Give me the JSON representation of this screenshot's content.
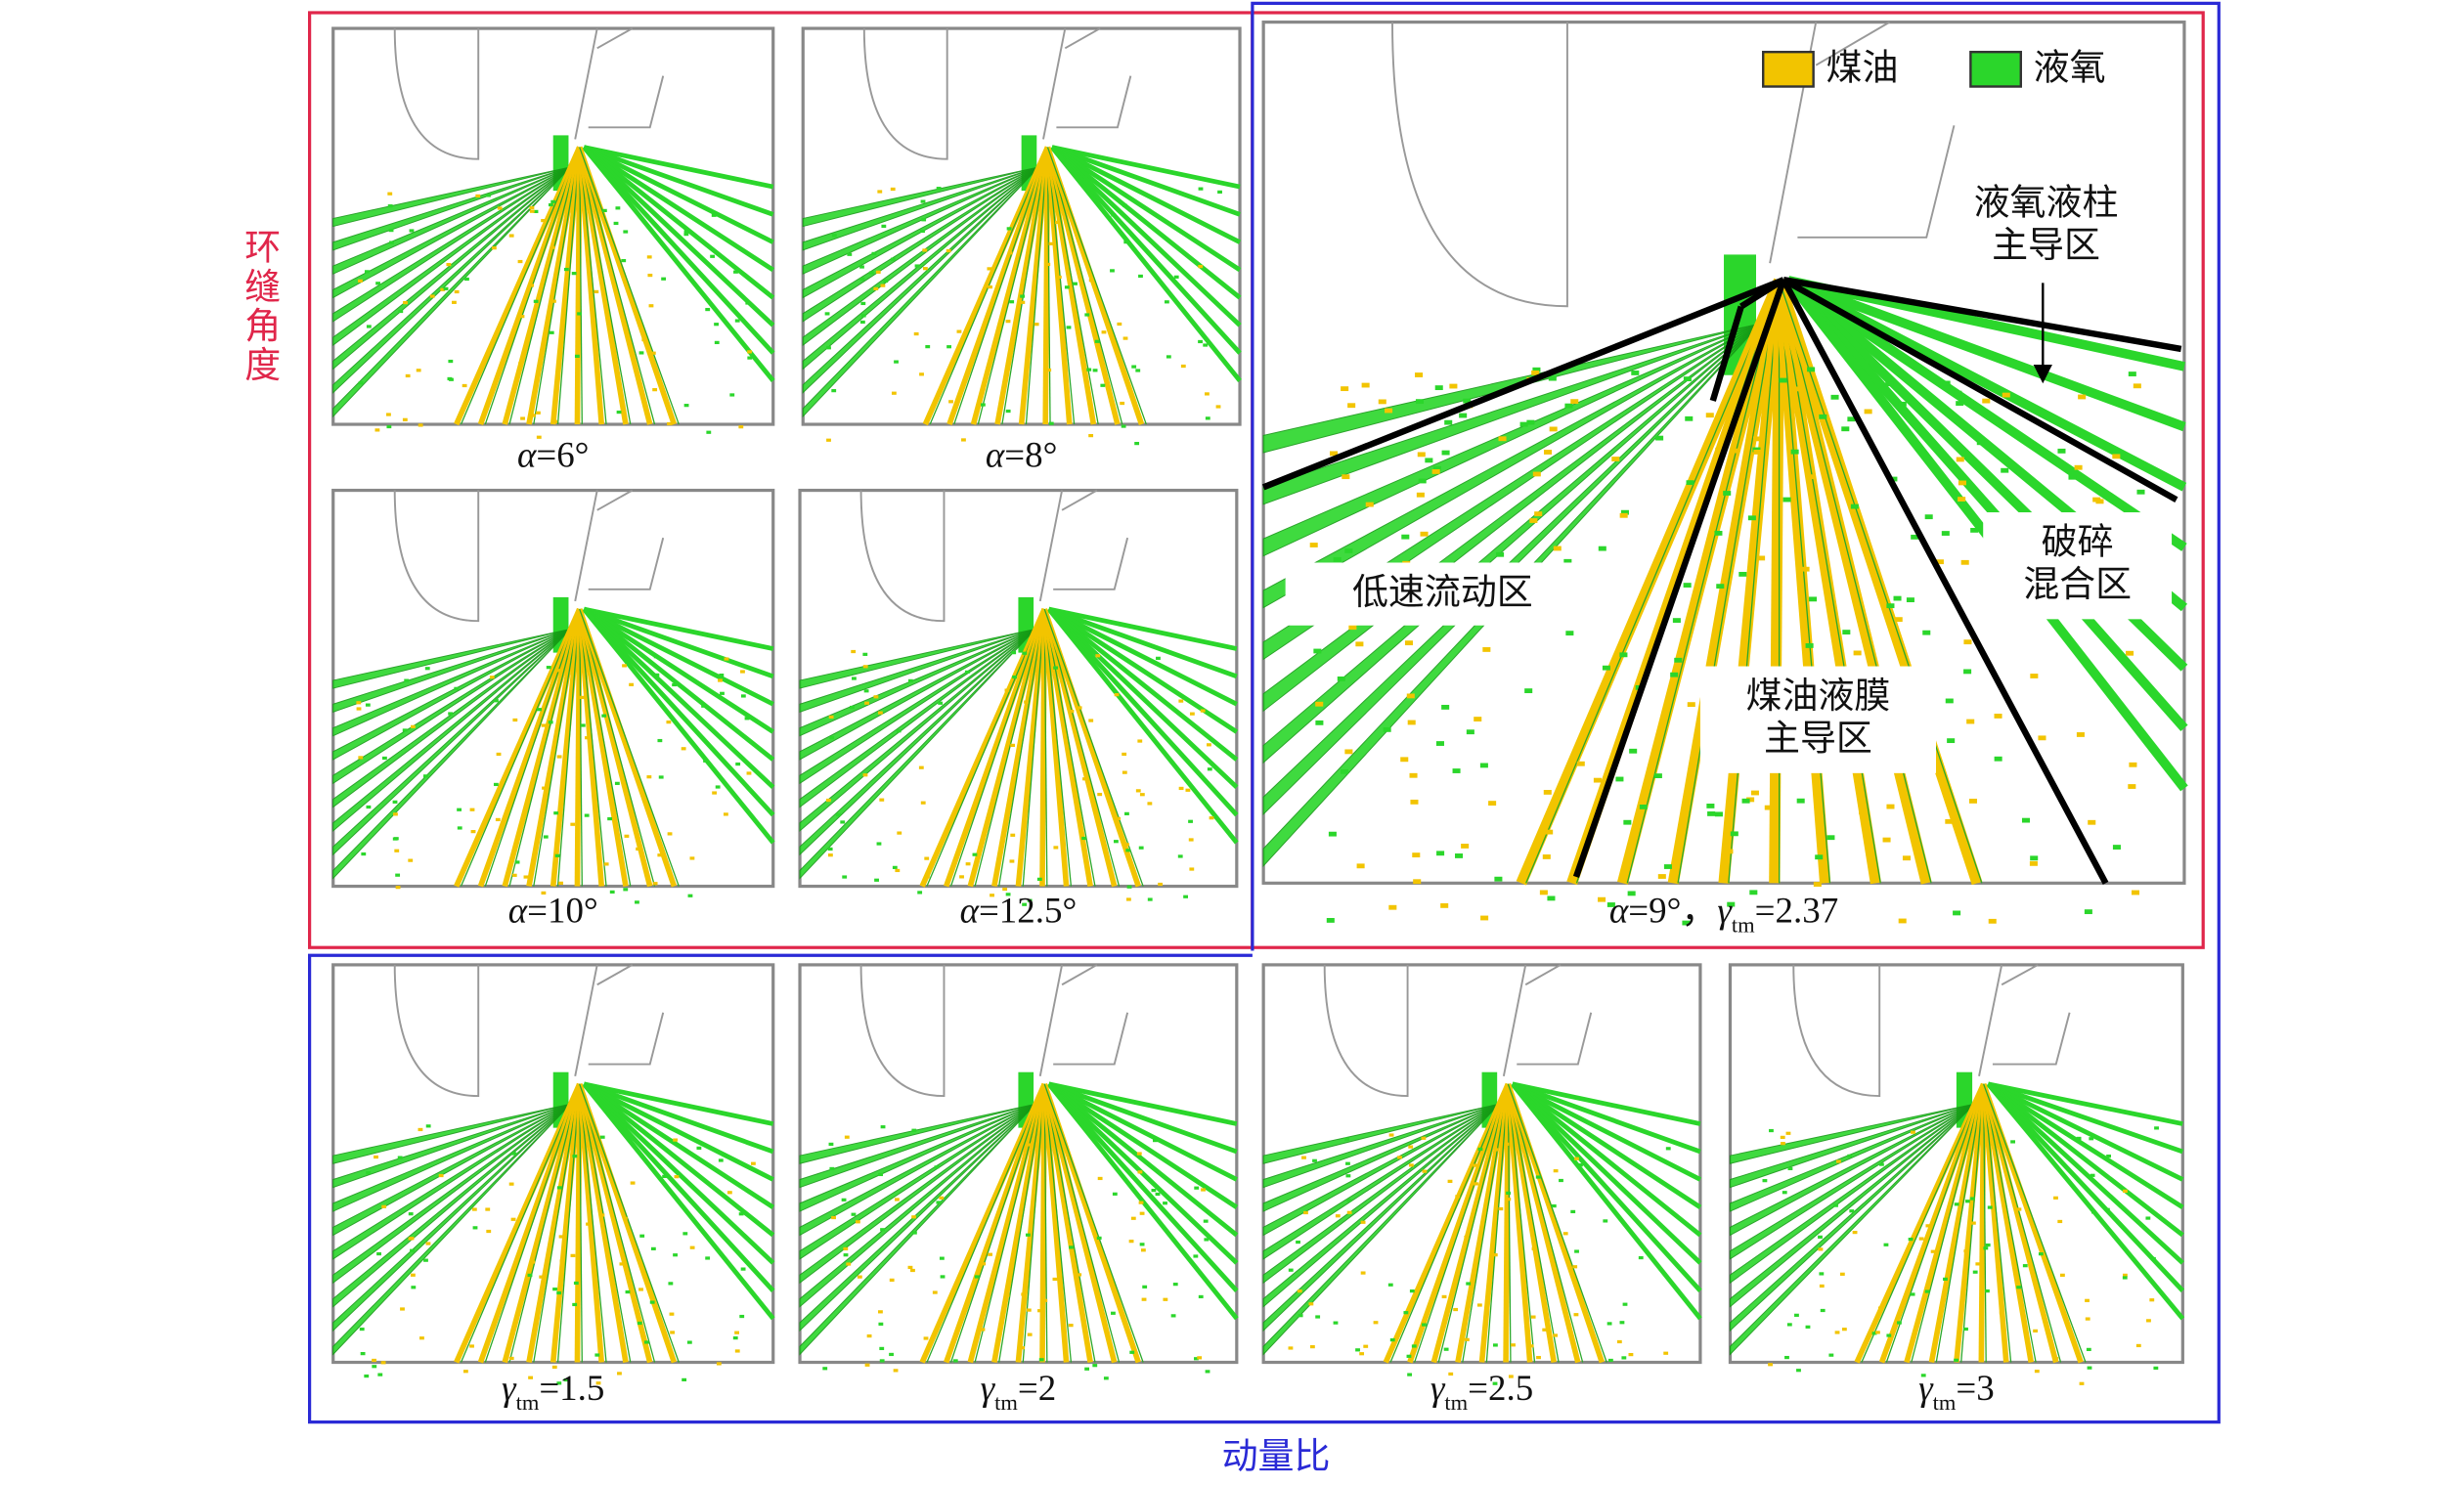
{
  "side_labels": {
    "angle": "环缝角度",
    "momentum": "动量比"
  },
  "legend": [
    {
      "label": "煤油",
      "color": "#f2c400"
    },
    {
      "label": "液氧",
      "color": "#2bd62b"
    }
  ],
  "panels": [
    {
      "caption": [
        {
          "text": "α",
          "italic": true
        },
        {
          "text": "=6°"
        }
      ]
    },
    {
      "caption": [
        {
          "text": "α",
          "italic": true
        },
        {
          "text": "=8°"
        }
      ]
    },
    {
      "caption": [
        {
          "text": "α",
          "italic": true
        },
        {
          "text": "=10°"
        }
      ]
    },
    {
      "caption": [
        {
          "text": "α",
          "italic": true
        },
        {
          "text": "=12.5°"
        }
      ]
    },
    {
      "caption": [
        {
          "text": "α",
          "italic": true
        },
        {
          "text": "=9°，"
        },
        {
          "text": "γ",
          "italic": true
        },
        {
          "text": "tm",
          "sub": true
        },
        {
          "text": "=2.37"
        }
      ]
    },
    {
      "caption": [
        {
          "text": "γ",
          "italic": true
        },
        {
          "text": "tm",
          "sub": true
        },
        {
          "text": "=1.5"
        }
      ]
    },
    {
      "caption": [
        {
          "text": "γ",
          "italic": true
        },
        {
          "text": "tm",
          "sub": true
        },
        {
          "text": "=2"
        }
      ]
    },
    {
      "caption": [
        {
          "text": "γ",
          "italic": true
        },
        {
          "text": "tm",
          "sub": true
        },
        {
          "text": "=2.5"
        }
      ]
    },
    {
      "caption": [
        {
          "text": "γ",
          "italic": true
        },
        {
          "text": "tm",
          "sub": true
        },
        {
          "text": "=3"
        }
      ]
    }
  ],
  "annotations": [
    {
      "lines": [
        "液氧液柱",
        "主导区"
      ]
    },
    {
      "lines": [
        "低速流动区"
      ]
    },
    {
      "lines": [
        "煤油液膜",
        "主导区"
      ]
    },
    {
      "lines": [
        "破碎",
        "混合区"
      ]
    }
  ]
}
